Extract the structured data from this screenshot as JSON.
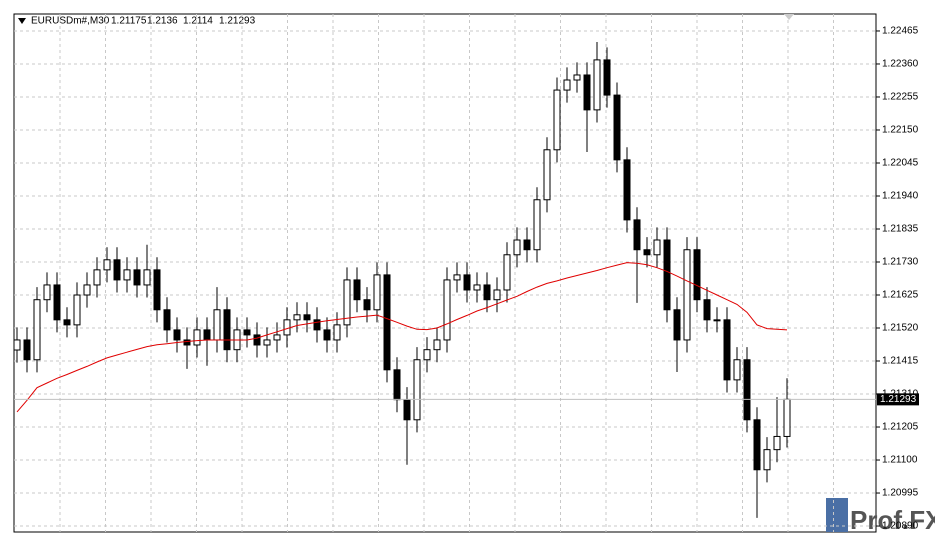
{
  "chart_data": {
    "type": "candlestick",
    "title": "EURUSDm#,M30",
    "watermark": "Prof.FX",
    "open": [
      1.2145,
      1.21482,
      1.21419,
      1.2161,
      1.21657,
      1.21546,
      1.2153,
      1.21625,
      1.21657,
      1.21705,
      1.21737,
      1.21673,
      1.21705,
      1.21657,
      1.21705,
      1.21578,
      1.21514,
      1.21482,
      1.21466,
      1.21514,
      1.21482,
      1.21578,
      1.21451,
      1.21514,
      1.21498,
      1.21466,
      1.21482,
      1.21498,
      1.21546,
      1.21562,
      1.21546,
      1.21514,
      1.21482,
      1.2153,
      1.21673,
      1.2161,
      1.21578,
      1.21689,
      1.21387,
      1.21292,
      1.21228,
      1.21419,
      1.21451,
      1.21482,
      1.21673,
      1.21689,
      1.21641,
      1.21657,
      1.2161,
      1.21641,
      1.21753,
      1.218,
      1.21769,
      1.21928,
      1.22087,
      1.22277,
      1.22309,
      1.22325,
      1.22214,
      1.22373,
      1.22261,
      1.22055,
      1.21864,
      1.21769,
      1.21753,
      1.218,
      1.21578,
      1.21482,
      1.21769,
      1.2161,
      1.21546,
      1.21546,
      1.21355,
      1.21419,
      1.21228,
      1.21069,
      1.21133,
      1.21175
    ],
    "high": [
      1.21522,
      1.21522,
      1.2165,
      1.21697,
      1.21697,
      1.21586,
      1.21665,
      1.21697,
      1.21745,
      1.21777,
      1.21777,
      1.21745,
      1.21745,
      1.21785,
      1.21745,
      1.21618,
      1.21554,
      1.21522,
      1.21554,
      1.21554,
      1.2165,
      1.21618,
      1.21554,
      1.21554,
      1.21538,
      1.21522,
      1.21538,
      1.21586,
      1.21602,
      1.21602,
      1.21586,
      1.21554,
      1.2157,
      1.21713,
      1.21713,
      1.2165,
      1.21729,
      1.21729,
      1.21427,
      1.21332,
      1.21459,
      1.21491,
      1.21522,
      1.21713,
      1.21729,
      1.21729,
      1.21697,
      1.21697,
      1.21681,
      1.21793,
      1.2184,
      1.2184,
      1.21968,
      1.22127,
      1.22317,
      1.22349,
      1.22365,
      1.22365,
      1.2243,
      1.22413,
      1.22301,
      1.22095,
      1.21904,
      1.21809,
      1.2184,
      1.2184,
      1.21618,
      1.21809,
      1.21809,
      1.2165,
      1.21586,
      1.21586,
      1.21459,
      1.21459,
      1.21268,
      1.21173,
      1.213,
      1.2136
    ],
    "low": [
      1.2141,
      1.21379,
      1.21379,
      1.2157,
      1.21506,
      1.2149,
      1.2149,
      1.21585,
      1.21617,
      1.21665,
      1.21633,
      1.21633,
      1.21617,
      1.21617,
      1.21538,
      1.21474,
      1.21442,
      1.2139,
      1.21426,
      1.214,
      1.21442,
      1.21411,
      1.21411,
      1.21458,
      1.21426,
      1.21426,
      1.21442,
      1.21458,
      1.21506,
      1.21506,
      1.21474,
      1.21442,
      1.21442,
      1.2149,
      1.2157,
      1.21538,
      1.21538,
      1.21347,
      1.21252,
      1.21085,
      1.21188,
      1.21379,
      1.21411,
      1.21442,
      1.21633,
      1.21601,
      1.21601,
      1.2157,
      1.2157,
      1.21601,
      1.21713,
      1.21729,
      1.21729,
      1.21888,
      1.22047,
      1.22237,
      1.22269,
      1.2208,
      1.22174,
      1.22221,
      1.22015,
      1.21824,
      1.216,
      1.21713,
      1.21713,
      1.21538,
      1.2138,
      1.21442,
      1.2157,
      1.21506,
      1.21506,
      1.21315,
      1.21315,
      1.21188,
      1.20916,
      1.21029,
      1.21093,
      1.2114
    ],
    "close": [
      1.21482,
      1.21419,
      1.2161,
      1.21657,
      1.21546,
      1.2153,
      1.21625,
      1.21657,
      1.21705,
      1.21737,
      1.21673,
      1.21705,
      1.21657,
      1.21705,
      1.21578,
      1.21514,
      1.21482,
      1.21466,
      1.21514,
      1.21482,
      1.21578,
      1.21451,
      1.21514,
      1.21498,
      1.21466,
      1.21482,
      1.21498,
      1.21546,
      1.21562,
      1.21546,
      1.21514,
      1.21482,
      1.2153,
      1.21673,
      1.2161,
      1.21578,
      1.21689,
      1.21387,
      1.21292,
      1.21228,
      1.21419,
      1.21451,
      1.21482,
      1.21673,
      1.21689,
      1.21641,
      1.21657,
      1.2161,
      1.21641,
      1.21753,
      1.218,
      1.21769,
      1.21928,
      1.22087,
      1.22277,
      1.22309,
      1.22325,
      1.22214,
      1.22373,
      1.22261,
      1.22055,
      1.21864,
      1.21769,
      1.21753,
      1.218,
      1.21578,
      1.21482,
      1.21769,
      1.2161,
      1.21546,
      1.21546,
      1.21355,
      1.21419,
      1.21228,
      1.21069,
      1.21133,
      1.21175,
      1.21293
    ],
    "ma": [
      1.21253,
      1.2129,
      1.2133,
      1.21345,
      1.2136,
      1.21372,
      1.21385,
      1.21398,
      1.21412,
      1.21425,
      1.21434,
      1.21443,
      1.21452,
      1.21461,
      1.21467,
      1.2147,
      1.21474,
      1.21477,
      1.2148,
      1.21482,
      1.21482,
      1.21482,
      1.21482,
      1.21482,
      1.21488,
      1.21498,
      1.21508,
      1.21518,
      1.21528,
      1.21533,
      1.21538,
      1.21543,
      1.21547,
      1.21551,
      1.21555,
      1.21558,
      1.21561,
      1.2155,
      1.21538,
      1.21526,
      1.21516,
      1.21515,
      1.2152,
      1.21533,
      1.21547,
      1.2156,
      1.21574,
      1.21585,
      1.21597,
      1.21609,
      1.21621,
      1.21636,
      1.2165,
      1.21662,
      1.2167,
      1.21679,
      1.21687,
      1.21695,
      1.21703,
      1.21712,
      1.2172,
      1.21728,
      1.21726,
      1.21721,
      1.21712,
      1.217,
      1.21685,
      1.2167,
      1.21655,
      1.2164,
      1.21625,
      1.2161,
      1.21595,
      1.2157,
      1.2153,
      1.21518,
      1.21516,
      1.21514
    ],
    "ylim": [
      1.20871,
      1.22519
    ],
    "yticks": [
      1.22465,
      {
        "value": 1.2236,
        "label": "1.22360"
      },
      1.22255,
      {
        "value": 1.2215,
        "label": "1.22150"
      },
      1.22045,
      {
        "value": 1.2194,
        "label": "1.21940"
      },
      1.21835,
      {
        "value": 1.2173,
        "label": "1.21730"
      },
      1.21625,
      {
        "value": 1.2152,
        "label": "1.21520"
      },
      1.21415,
      {
        "value": 1.2131,
        "label": "1.21310"
      },
      1.21205,
      {
        "value": 1.211,
        "label": "1.21100"
      },
      1.20995,
      {
        "value": 1.2089,
        "label": "1.20890"
      }
    ],
    "grid": true,
    "up_color": "#ffffff",
    "down_color": "#000000",
    "ma_color": "#e00000"
  }
}
